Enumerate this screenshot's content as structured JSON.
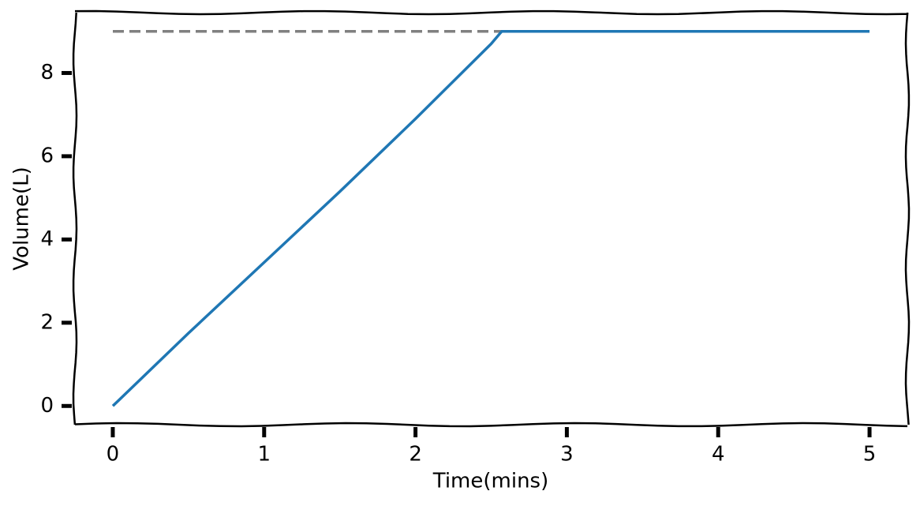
{
  "chart_data": {
    "type": "line",
    "xlabel": "Time(mins)",
    "ylabel": "Volume(L)",
    "xlim": [
      -0.25,
      5.25
    ],
    "ylim": [
      -0.45,
      9.45
    ],
    "xticks": [
      0,
      1,
      2,
      3,
      4,
      5
    ],
    "yticks": [
      0,
      2,
      4,
      6,
      8
    ],
    "grid": false,
    "series": [
      {
        "color": "#1f77b4",
        "style": "solid",
        "x": [
          0,
          0.5,
          1,
          1.5,
          2,
          2.5,
          2.57,
          3,
          4,
          5
        ],
        "values": [
          0,
          1.75,
          3.45,
          5.15,
          6.9,
          8.7,
          9,
          9,
          9,
          9
        ]
      },
      {
        "color": "#808080",
        "style": "dashed",
        "x": [
          0,
          5
        ],
        "values": [
          9,
          9
        ]
      }
    ]
  }
}
